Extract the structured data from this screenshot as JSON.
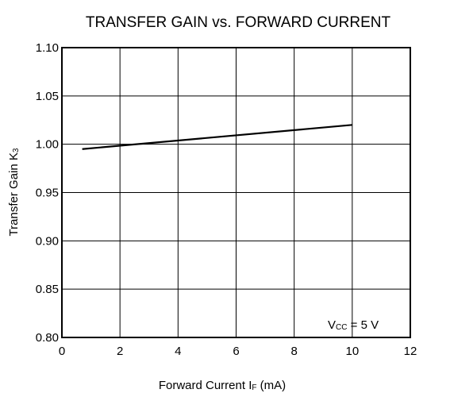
{
  "chart_data": {
    "type": "line",
    "title": "TRANSFER GAIN vs. FORWARD CURRENT",
    "x_label": {
      "text": "Forward Current  I",
      "sub": "F",
      "suffix": " (mA)"
    },
    "y_label": {
      "text": "Transfer Gain  K",
      "sub": "3"
    },
    "annotation": {
      "text": "V",
      "sub": "CC",
      "suffix": " = 5 V"
    },
    "xlim": [
      0,
      12
    ],
    "xticks": [
      0,
      2,
      4,
      6,
      8,
      10,
      12
    ],
    "ylim": [
      0.8,
      1.1
    ],
    "yticks": [
      {
        "value": 0.8,
        "label": "0.80"
      },
      0.85,
      {
        "value": 0.9,
        "label": "0.90"
      },
      0.95,
      {
        "value": 1.0,
        "label": "1.00"
      },
      1.05,
      {
        "value": 1.1,
        "label": "1.10"
      }
    ],
    "grid": true,
    "series": [
      {
        "color": "#000000",
        "x": [
          0.7,
          10
        ],
        "values": [
          0.995,
          1.02
        ]
      }
    ]
  }
}
